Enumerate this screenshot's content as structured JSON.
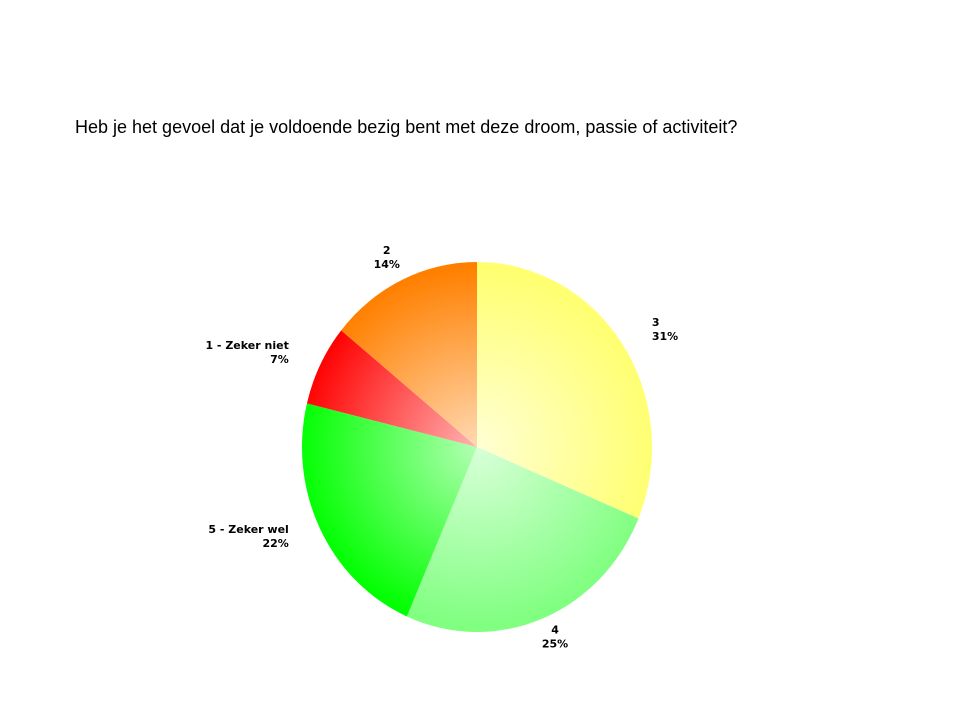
{
  "chart_data": {
    "type": "pie",
    "title": "Heb je het gevoel dat je voldoende bezig bent met deze droom, passie of activiteit?",
    "categories": [
      "3",
      "4",
      "5 - Zeker wel",
      "1 - Zeker niet",
      "2"
    ],
    "values": [
      31,
      25,
      22,
      7,
      14
    ],
    "value_labels": [
      "31%",
      "25%",
      "22%",
      "7%",
      "14%"
    ],
    "colors": [
      "#ffff70",
      "#80ff80",
      "#00ff00",
      "#ff0000",
      "#ff8000"
    ]
  }
}
